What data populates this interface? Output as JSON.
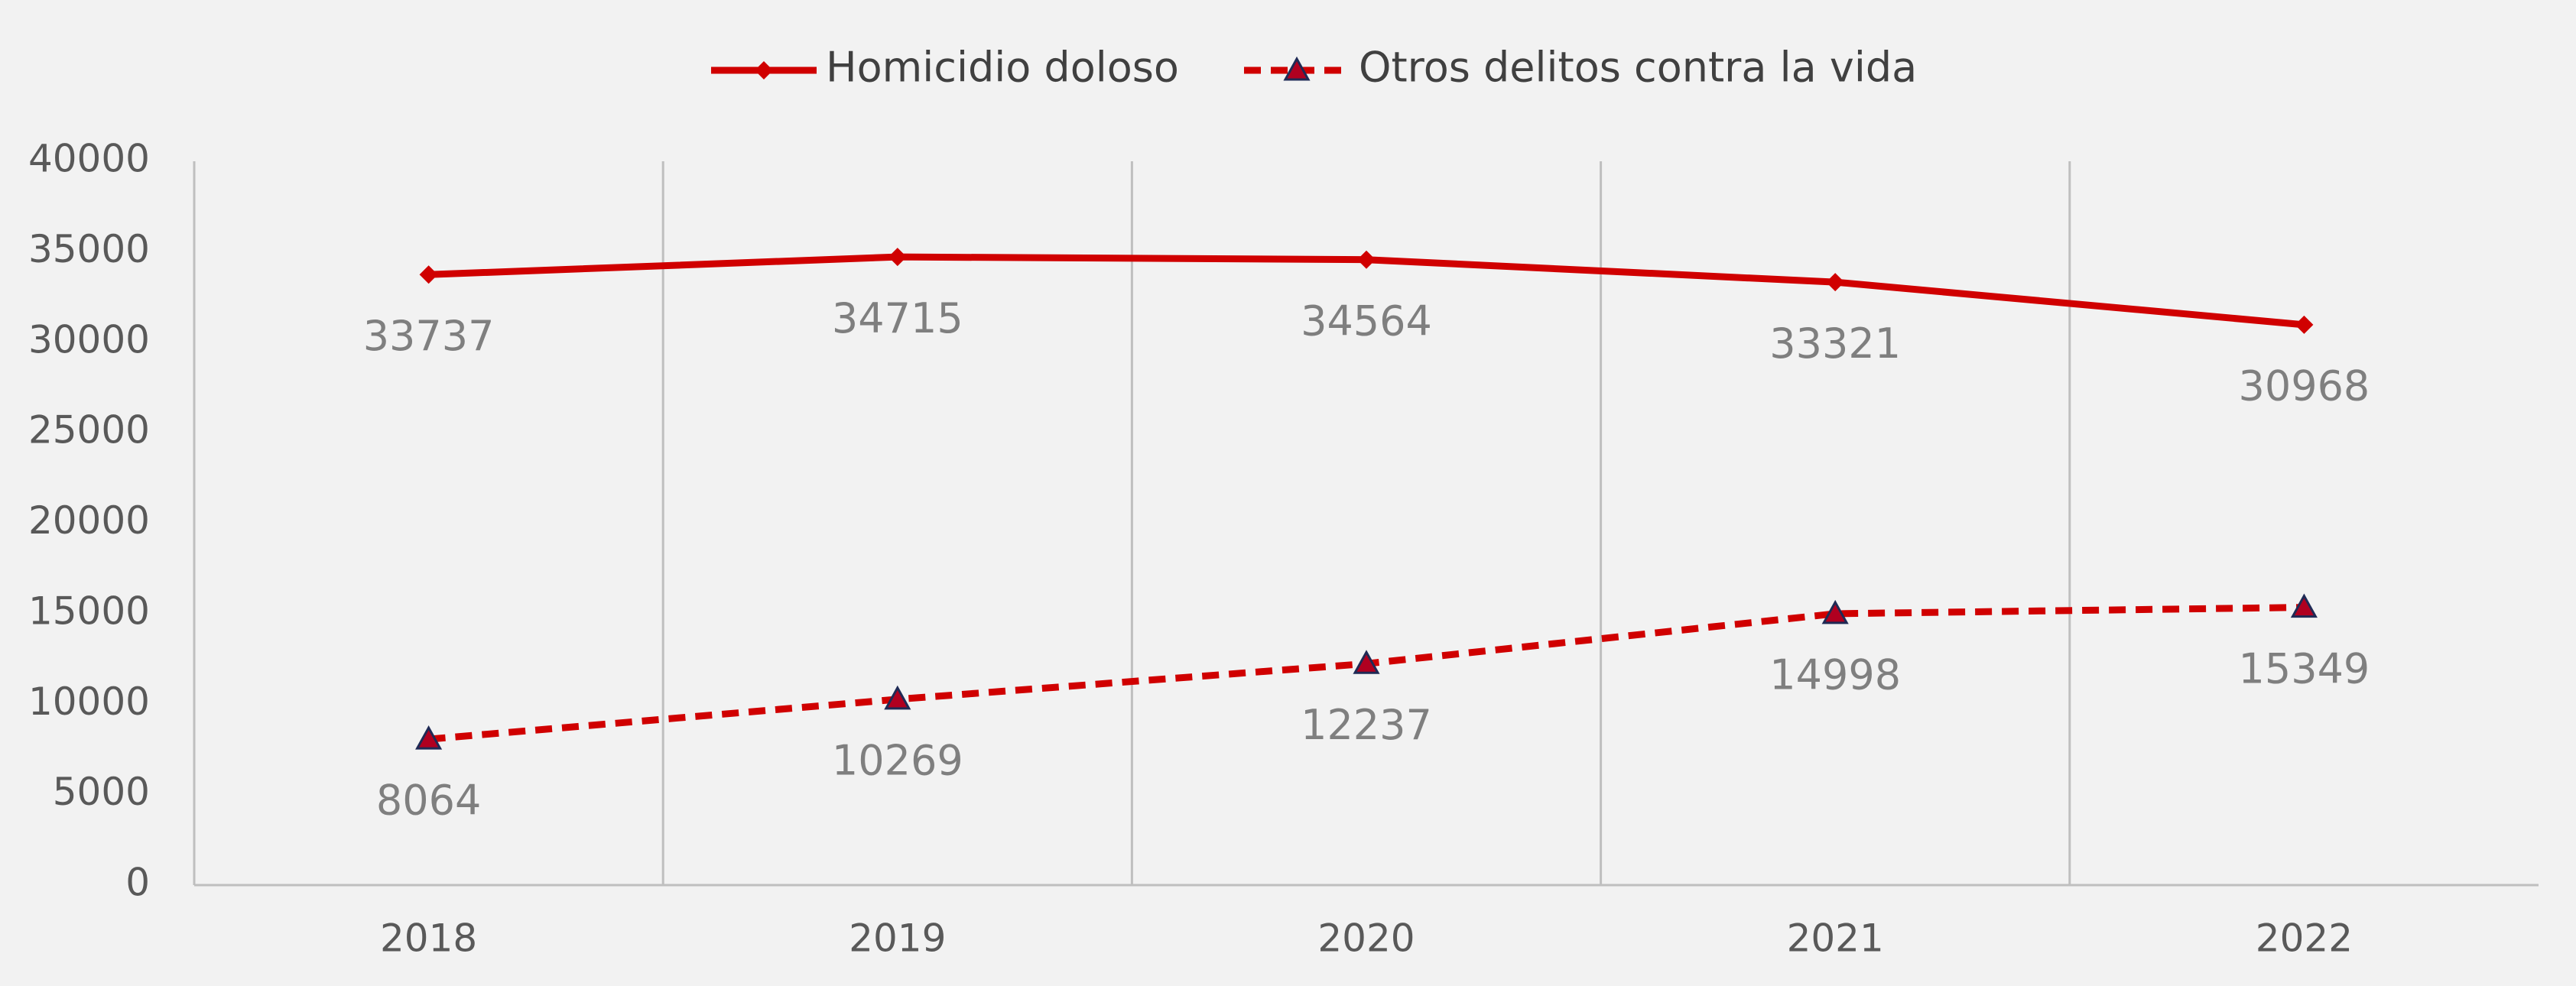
{
  "chart_data": {
    "type": "line",
    "categories": [
      "2018",
      "2019",
      "2020",
      "2021",
      "2022"
    ],
    "series": [
      {
        "name": "Homicidio doloso",
        "color": "#d00000",
        "marker": "diamond",
        "dash": false,
        "values": [
          33737,
          34715,
          34564,
          33321,
          30968
        ]
      },
      {
        "name": "Otros delitos contra la vida",
        "color": "#d00000",
        "marker": "triangle",
        "dash": true,
        "values": [
          8064,
          10269,
          12237,
          14998,
          15349
        ]
      }
    ],
    "ylim": [
      0,
      40000
    ],
    "yticks": [
      0,
      5000,
      10000,
      15000,
      20000,
      25000,
      30000,
      35000,
      40000
    ],
    "grid": "vertical",
    "legend": "top",
    "data_labels": true
  }
}
